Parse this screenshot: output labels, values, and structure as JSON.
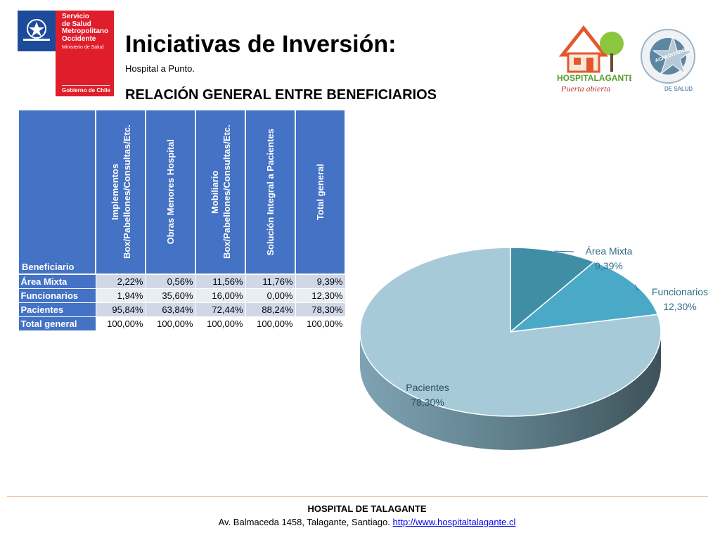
{
  "org_logo": {
    "name_lines": "Servicio\nde Salud\nMetropolitano\nOccidente",
    "ministry": "Ministerio de Salud",
    "government": "Gobierno de Chile"
  },
  "title": "Iniciativas de Inversión:",
  "subtitle": "Hospital a Punto.",
  "section_title": "RELACIÓN GENERAL ENTRE BENEFICIARIOS",
  "hospital_logo": {
    "line1": "HOSPITALAGANTE",
    "line2": "Puerta abierta"
  },
  "accreditation_logo": {
    "text": "ACREDITADO",
    "footer": "DE SALUD"
  },
  "table": {
    "corner_label": "Beneficiario",
    "columns": [
      "Implementos Box/Pabellones/Consultas/Etc.",
      "Obras Menores Hospital",
      "Mobiliario Box/Pabellones/Consultas/Etc.",
      "Solución Integral a Pacientes",
      "Total general"
    ],
    "rows": [
      {
        "label": "Área Mixta",
        "values": [
          "2,22%",
          "0,56%",
          "11,56%",
          "11,76%",
          "9,39%"
        ]
      },
      {
        "label": "Funcionarios",
        "values": [
          "1,94%",
          "35,60%",
          "16,00%",
          "0,00%",
          "12,30%"
        ]
      },
      {
        "label": "Pacientes",
        "values": [
          "95,84%",
          "63,84%",
          "72,44%",
          "88,24%",
          "78,30%"
        ]
      },
      {
        "label": "Total general",
        "values": [
          "100,00%",
          "100,00%",
          "100,00%",
          "100,00%",
          "100,00%"
        ]
      }
    ]
  },
  "chart_data": {
    "type": "pie",
    "slices": [
      {
        "label": "Área Mixta",
        "value": 9.39,
        "display": "9,39%",
        "color": "#3f8ea5"
      },
      {
        "label": "Funcionarios",
        "value": 12.3,
        "display": "12,30%",
        "color": "#4ba9c8"
      },
      {
        "label": "Pacientes",
        "value": 78.3,
        "display": "78,30%",
        "color": "#a7cad9"
      }
    ]
  },
  "footer": {
    "hospital": "HOSPITAL DE TALAGANTE",
    "address": "Av. Balmaceda 1458, Talagante, Santiago.",
    "url": "http://www.hospitaltalagante.cl"
  }
}
